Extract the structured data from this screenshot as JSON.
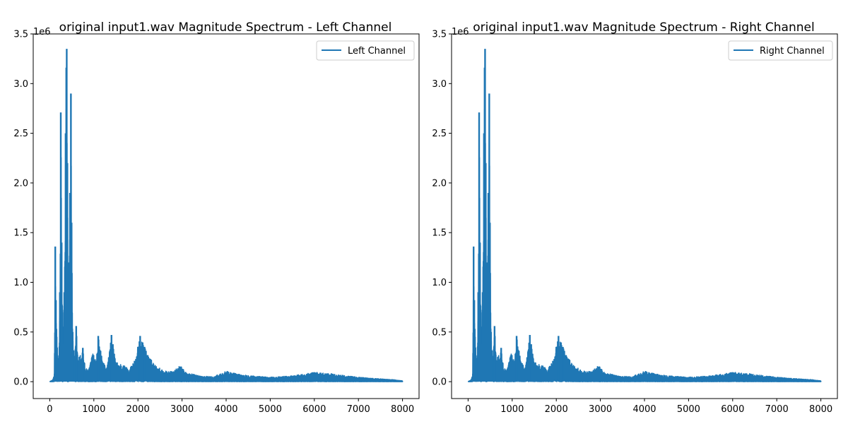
{
  "colors": {
    "line": "#1f77b4",
    "axes": "#000000",
    "legend_border": "#cccccc",
    "background": "#ffffff"
  },
  "chart_data": [
    {
      "type": "line",
      "title": "original input1.wav Magnitude Spectrum - Left Channel",
      "xlabel": "",
      "ylabel": "",
      "xlim": [
        -375,
        8375
      ],
      "ylim": [
        -170000,
        3500000
      ],
      "x_ticks": [
        0,
        1000,
        2000,
        3000,
        4000,
        5000,
        6000,
        7000,
        8000
      ],
      "x_tick_labels": [
        "0",
        "1000",
        "2000",
        "3000",
        "4000",
        "5000",
        "6000",
        "7000",
        "8000"
      ],
      "y_ticks": [
        0,
        500000,
        1000000,
        1500000,
        2000000,
        2500000,
        3000000,
        3500000
      ],
      "y_tick_labels": [
        "0.0",
        "0.5",
        "1.0",
        "1.5",
        "2.0",
        "2.5",
        "3.0",
        "3.5"
      ],
      "y_offset_label": "1e6",
      "grid": false,
      "legend": {
        "placement": "upper-right",
        "entries": [
          "Left Channel"
        ]
      },
      "series": [
        {
          "name": "Left Channel",
          "color": "#1f77b4",
          "peaks": [
            {
              "f": 0,
              "v": 2000
            },
            {
              "f": 60,
              "v": 15000
            },
            {
              "f": 100,
              "v": 80000
            },
            {
              "f": 125,
              "v": 1360000
            },
            {
              "f": 140,
              "v": 820000
            },
            {
              "f": 175,
              "v": 300000
            },
            {
              "f": 200,
              "v": 180000
            },
            {
              "f": 230,
              "v": 900000
            },
            {
              "f": 250,
              "v": 2710000
            },
            {
              "f": 270,
              "v": 1400000
            },
            {
              "f": 300,
              "v": 380000
            },
            {
              "f": 330,
              "v": 900000
            },
            {
              "f": 360,
              "v": 2500000
            },
            {
              "f": 375,
              "v": 3160000
            },
            {
              "f": 385,
              "v": 3350000
            },
            {
              "f": 400,
              "v": 2200000
            },
            {
              "f": 430,
              "v": 1200000
            },
            {
              "f": 460,
              "v": 1900000
            },
            {
              "f": 480,
              "v": 2900000
            },
            {
              "f": 495,
              "v": 1600000
            },
            {
              "f": 520,
              "v": 500000
            },
            {
              "f": 560,
              "v": 200000
            },
            {
              "f": 600,
              "v": 560000
            },
            {
              "f": 640,
              "v": 230000
            },
            {
              "f": 700,
              "v": 280000
            },
            {
              "f": 750,
              "v": 340000
            },
            {
              "f": 800,
              "v": 150000
            },
            {
              "f": 850,
              "v": 120000
            },
            {
              "f": 900,
              "v": 160000
            },
            {
              "f": 980,
              "v": 300000
            },
            {
              "f": 1050,
              "v": 200000
            },
            {
              "f": 1100,
              "v": 460000
            },
            {
              "f": 1200,
              "v": 190000
            },
            {
              "f": 1300,
              "v": 160000
            },
            {
              "f": 1400,
              "v": 470000
            },
            {
              "f": 1500,
              "v": 200000
            },
            {
              "f": 1600,
              "v": 180000
            },
            {
              "f": 1700,
              "v": 160000
            },
            {
              "f": 1800,
              "v": 130000
            },
            {
              "f": 1900,
              "v": 200000
            },
            {
              "f": 2000,
              "v": 350000
            },
            {
              "f": 2050,
              "v": 460000
            },
            {
              "f": 2150,
              "v": 350000
            },
            {
              "f": 2250,
              "v": 250000
            },
            {
              "f": 2400,
              "v": 160000
            },
            {
              "f": 2600,
              "v": 110000
            },
            {
              "f": 2800,
              "v": 100000
            },
            {
              "f": 2950,
              "v": 165000
            },
            {
              "f": 3100,
              "v": 90000
            },
            {
              "f": 3400,
              "v": 60000
            },
            {
              "f": 3700,
              "v": 50000
            },
            {
              "f": 4000,
              "v": 105000
            },
            {
              "f": 4300,
              "v": 75000
            },
            {
              "f": 4700,
              "v": 55000
            },
            {
              "f": 5000,
              "v": 45000
            },
            {
              "f": 5500,
              "v": 60000
            },
            {
              "f": 6000,
              "v": 95000
            },
            {
              "f": 6400,
              "v": 80000
            },
            {
              "f": 6800,
              "v": 55000
            },
            {
              "f": 7300,
              "v": 35000
            },
            {
              "f": 7800,
              "v": 20000
            },
            {
              "f": 8000,
              "v": 8000
            }
          ]
        }
      ]
    },
    {
      "type": "line",
      "title": "original input1.wav Magnitude Spectrum - Right Channel",
      "xlabel": "",
      "ylabel": "",
      "xlim": [
        -375,
        8375
      ],
      "ylim": [
        -170000,
        3500000
      ],
      "x_ticks": [
        0,
        1000,
        2000,
        3000,
        4000,
        5000,
        6000,
        7000,
        8000
      ],
      "x_tick_labels": [
        "0",
        "1000",
        "2000",
        "3000",
        "4000",
        "5000",
        "6000",
        "7000",
        "8000"
      ],
      "y_ticks": [
        0,
        500000,
        1000000,
        1500000,
        2000000,
        2500000,
        3000000,
        3500000
      ],
      "y_tick_labels": [
        "0.0",
        "0.5",
        "1.0",
        "1.5",
        "2.0",
        "2.5",
        "3.0",
        "3.5"
      ],
      "y_offset_label": "1e6",
      "grid": false,
      "legend": {
        "placement": "upper-right",
        "entries": [
          "Right Channel"
        ]
      },
      "series": [
        {
          "name": "Right Channel",
          "color": "#1f77b4",
          "peaks": [
            {
              "f": 0,
              "v": 2000
            },
            {
              "f": 60,
              "v": 15000
            },
            {
              "f": 100,
              "v": 80000
            },
            {
              "f": 125,
              "v": 1360000
            },
            {
              "f": 140,
              "v": 820000
            },
            {
              "f": 175,
              "v": 300000
            },
            {
              "f": 200,
              "v": 180000
            },
            {
              "f": 230,
              "v": 900000
            },
            {
              "f": 250,
              "v": 2710000
            },
            {
              "f": 270,
              "v": 1400000
            },
            {
              "f": 300,
              "v": 380000
            },
            {
              "f": 330,
              "v": 900000
            },
            {
              "f": 360,
              "v": 2500000
            },
            {
              "f": 375,
              "v": 3160000
            },
            {
              "f": 385,
              "v": 3350000
            },
            {
              "f": 400,
              "v": 2200000
            },
            {
              "f": 430,
              "v": 1200000
            },
            {
              "f": 460,
              "v": 1900000
            },
            {
              "f": 480,
              "v": 2900000
            },
            {
              "f": 495,
              "v": 1600000
            },
            {
              "f": 520,
              "v": 500000
            },
            {
              "f": 560,
              "v": 200000
            },
            {
              "f": 600,
              "v": 560000
            },
            {
              "f": 640,
              "v": 230000
            },
            {
              "f": 700,
              "v": 280000
            },
            {
              "f": 750,
              "v": 340000
            },
            {
              "f": 800,
              "v": 150000
            },
            {
              "f": 850,
              "v": 120000
            },
            {
              "f": 900,
              "v": 160000
            },
            {
              "f": 980,
              "v": 300000
            },
            {
              "f": 1050,
              "v": 200000
            },
            {
              "f": 1100,
              "v": 460000
            },
            {
              "f": 1200,
              "v": 190000
            },
            {
              "f": 1300,
              "v": 160000
            },
            {
              "f": 1400,
              "v": 470000
            },
            {
              "f": 1500,
              "v": 200000
            },
            {
              "f": 1600,
              "v": 180000
            },
            {
              "f": 1700,
              "v": 160000
            },
            {
              "f": 1800,
              "v": 130000
            },
            {
              "f": 1900,
              "v": 200000
            },
            {
              "f": 2000,
              "v": 350000
            },
            {
              "f": 2050,
              "v": 460000
            },
            {
              "f": 2150,
              "v": 350000
            },
            {
              "f": 2250,
              "v": 250000
            },
            {
              "f": 2400,
              "v": 160000
            },
            {
              "f": 2600,
              "v": 110000
            },
            {
              "f": 2800,
              "v": 100000
            },
            {
              "f": 2950,
              "v": 165000
            },
            {
              "f": 3100,
              "v": 90000
            },
            {
              "f": 3400,
              "v": 60000
            },
            {
              "f": 3700,
              "v": 50000
            },
            {
              "f": 4000,
              "v": 105000
            },
            {
              "f": 4300,
              "v": 75000
            },
            {
              "f": 4700,
              "v": 55000
            },
            {
              "f": 5000,
              "v": 45000
            },
            {
              "f": 5500,
              "v": 60000
            },
            {
              "f": 6000,
              "v": 95000
            },
            {
              "f": 6400,
              "v": 80000
            },
            {
              "f": 6800,
              "v": 55000
            },
            {
              "f": 7300,
              "v": 35000
            },
            {
              "f": 7800,
              "v": 20000
            },
            {
              "f": 8000,
              "v": 8000
            }
          ]
        }
      ]
    }
  ]
}
